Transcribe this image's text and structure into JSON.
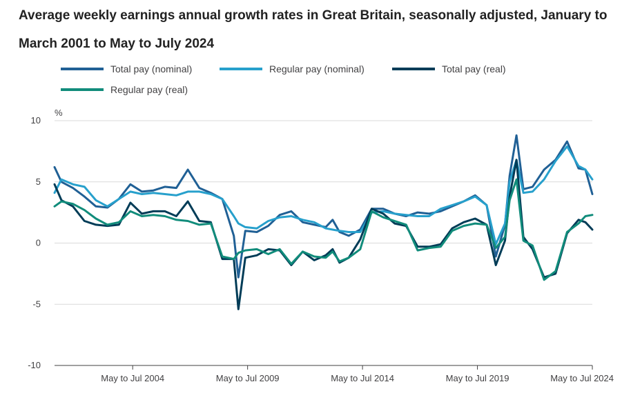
{
  "title": "Average weekly earnings annual growth rates in Great Britain, seasonally adjusted, January to March 2001 to May to July 2024",
  "chart_data": {
    "type": "line",
    "title": "Average weekly earnings annual growth rates in Great Britain, seasonally adjusted, January to March 2001 to May to July 2024",
    "ylabel": "%",
    "xlabel": "",
    "ylim": [
      -10,
      10
    ],
    "yticks": [
      "10",
      "5",
      "0",
      "-5",
      "-10"
    ],
    "xticks": [
      "May to Jul 2004",
      "May to Jul 2009",
      "May to Jul 2014",
      "May to Jul 2019",
      "May to Jul 2024"
    ],
    "grid": true,
    "legend_position": "top-left",
    "x_unit": "three-month period ending (year)",
    "x": [
      2001.2,
      2001.5,
      2002.0,
      2002.5,
      2003.0,
      2003.5,
      2004.0,
      2004.5,
      2005.0,
      2005.5,
      2006.0,
      2006.5,
      2007.0,
      2007.5,
      2008.0,
      2008.5,
      2009.0,
      2009.2,
      2009.5,
      2010.0,
      2010.5,
      2011.0,
      2011.5,
      2012.0,
      2012.5,
      2013.0,
      2013.3,
      2013.6,
      2014.0,
      2014.5,
      2015.0,
      2015.5,
      2016.0,
      2016.5,
      2017.0,
      2017.5,
      2018.0,
      2018.5,
      2019.0,
      2019.5,
      2020.0,
      2020.4,
      2020.8,
      2021.0,
      2021.3,
      2021.6,
      2022.0,
      2022.5,
      2023.0,
      2023.5,
      2024.0,
      2024.3,
      2024.6
    ],
    "series": [
      {
        "name": "Total pay (nominal)",
        "color": "#206095",
        "values": [
          6.2,
          5.0,
          4.5,
          3.8,
          3.0,
          2.9,
          3.6,
          4.8,
          4.2,
          4.3,
          4.6,
          4.5,
          6.0,
          4.5,
          4.1,
          3.6,
          0.6,
          -2.8,
          1.0,
          0.9,
          1.4,
          2.3,
          2.6,
          1.7,
          1.5,
          1.3,
          1.9,
          0.9,
          0.6,
          1.1,
          2.8,
          2.8,
          2.4,
          2.2,
          2.5,
          2.4,
          2.6,
          3.0,
          3.4,
          3.9,
          3.1,
          -1.1,
          1.5,
          5.5,
          8.8,
          4.4,
          4.6,
          6.0,
          6.8,
          8.3,
          6.1,
          6.0,
          4.0
        ]
      },
      {
        "name": "Regular pay (nominal)",
        "color": "#27a0cc",
        "values": [
          4.1,
          5.2,
          4.8,
          4.6,
          3.5,
          3.0,
          3.6,
          4.2,
          4.0,
          4.1,
          4.0,
          3.9,
          4.2,
          4.2,
          4.0,
          3.6,
          2.2,
          1.6,
          1.3,
          1.2,
          1.8,
          2.1,
          2.2,
          1.9,
          1.7,
          1.2,
          1.1,
          1.0,
          0.9,
          0.9,
          2.5,
          2.6,
          2.4,
          2.3,
          2.2,
          2.2,
          2.8,
          3.1,
          3.4,
          3.8,
          3.1,
          -0.1,
          1.6,
          5.0,
          6.8,
          4.1,
          4.2,
          5.2,
          6.7,
          7.9,
          6.3,
          6.0,
          5.2
        ]
      },
      {
        "name": "Total pay (real)",
        "color": "#003c57",
        "values": [
          4.8,
          3.5,
          3.0,
          1.8,
          1.5,
          1.4,
          1.5,
          3.3,
          2.4,
          2.6,
          2.6,
          2.2,
          3.4,
          1.8,
          1.7,
          -1.3,
          -1.3,
          -5.4,
          -1.2,
          -1.0,
          -0.5,
          -0.6,
          -1.8,
          -0.7,
          -1.4,
          -1.0,
          -0.5,
          -1.6,
          -1.2,
          0.3,
          2.8,
          2.4,
          1.6,
          1.4,
          -0.3,
          -0.3,
          -0.1,
          1.2,
          1.7,
          2.0,
          1.5,
          -1.8,
          0.2,
          3.8,
          6.8,
          0.5,
          -0.5,
          -2.8,
          -2.5,
          0.8,
          1.9,
          1.7,
          1.1
        ]
      },
      {
        "name": "Regular pay (real)",
        "color": "#118c7b",
        "values": [
          3.0,
          3.4,
          3.2,
          2.7,
          2.0,
          1.5,
          1.7,
          2.6,
          2.2,
          2.3,
          2.2,
          1.9,
          1.8,
          1.5,
          1.6,
          -1.1,
          -1.3,
          -0.8,
          -0.6,
          -0.5,
          -0.9,
          -0.5,
          -1.7,
          -0.7,
          -1.1,
          -1.2,
          -0.7,
          -1.5,
          -1.2,
          -0.5,
          2.6,
          2.1,
          1.8,
          1.5,
          -0.6,
          -0.4,
          -0.3,
          1.0,
          1.4,
          1.6,
          1.5,
          -0.4,
          0.5,
          3.5,
          5.2,
          0.2,
          -0.2,
          -3.0,
          -2.3,
          0.9,
          1.6,
          2.2,
          2.3
        ]
      }
    ]
  },
  "legend": [
    {
      "label": "Total pay (nominal)",
      "color": "#206095"
    },
    {
      "label": "Regular pay (nominal)",
      "color": "#27a0cc"
    },
    {
      "label": "Total pay (real)",
      "color": "#003c57"
    },
    {
      "label": "Regular pay (real)",
      "color": "#118c7b"
    }
  ],
  "colors": {
    "grid": "#d9d9d9",
    "axis": "#414042",
    "text": "#414042",
    "title": "#222222"
  }
}
